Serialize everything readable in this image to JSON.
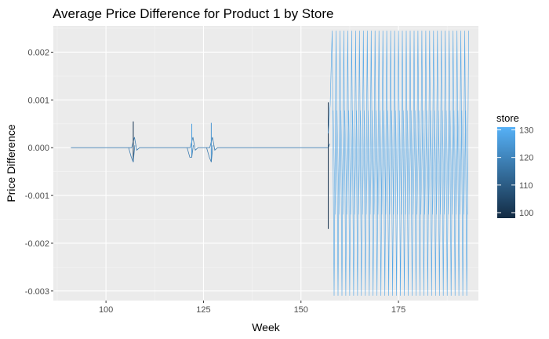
{
  "chart_data": {
    "type": "line",
    "title": "Average Price Difference for Product 1 by Store",
    "xlabel": "Week",
    "ylabel": "Price Difference",
    "xlim": [
      86.5,
      195.5
    ],
    "ylim": [
      -0.0032,
      0.00255
    ],
    "xticks": [
      100,
      125,
      150,
      175
    ],
    "xtick_labels": [
      "100",
      "125",
      "150",
      "175"
    ],
    "yticks": [
      0.002,
      0.001,
      0.0,
      -0.001,
      -0.002,
      -0.003
    ],
    "ytick_labels": [
      "0.002",
      "0.001",
      "0.000",
      "-0.001",
      "-0.002",
      "-0.003"
    ],
    "grid": true,
    "legend": {
      "title": "store",
      "position": "right",
      "type": "colorbar",
      "range": [
        98,
        131
      ],
      "ticks": [
        100,
        110,
        120,
        130
      ],
      "tick_labels": [
        "100",
        "110",
        "120",
        "130"
      ],
      "color_low": "#132b43",
      "color_high": "#56b1f7"
    },
    "background_color": "#ebebeb",
    "series_flat": {
      "x_start": 91,
      "x_end": 157,
      "value": 0.0
    },
    "spikes": [
      {
        "x": 107,
        "high": 0.00055,
        "low": -0.0003,
        "store": 101
      },
      {
        "x": 122,
        "high": 0.0005,
        "low": -0.0002,
        "store": 127
      },
      {
        "x": 127,
        "high": 0.00052,
        "low": -0.0003,
        "store": 124
      },
      {
        "x": 157,
        "high": 0.00095,
        "low": -0.0017,
        "store": 100
      }
    ],
    "oscillation": {
      "x_start": 157,
      "x_end": 193,
      "max": 0.00245,
      "min": -0.0031,
      "inner_max": 0.00078,
      "inner_min": -0.0014,
      "store": 128
    }
  }
}
